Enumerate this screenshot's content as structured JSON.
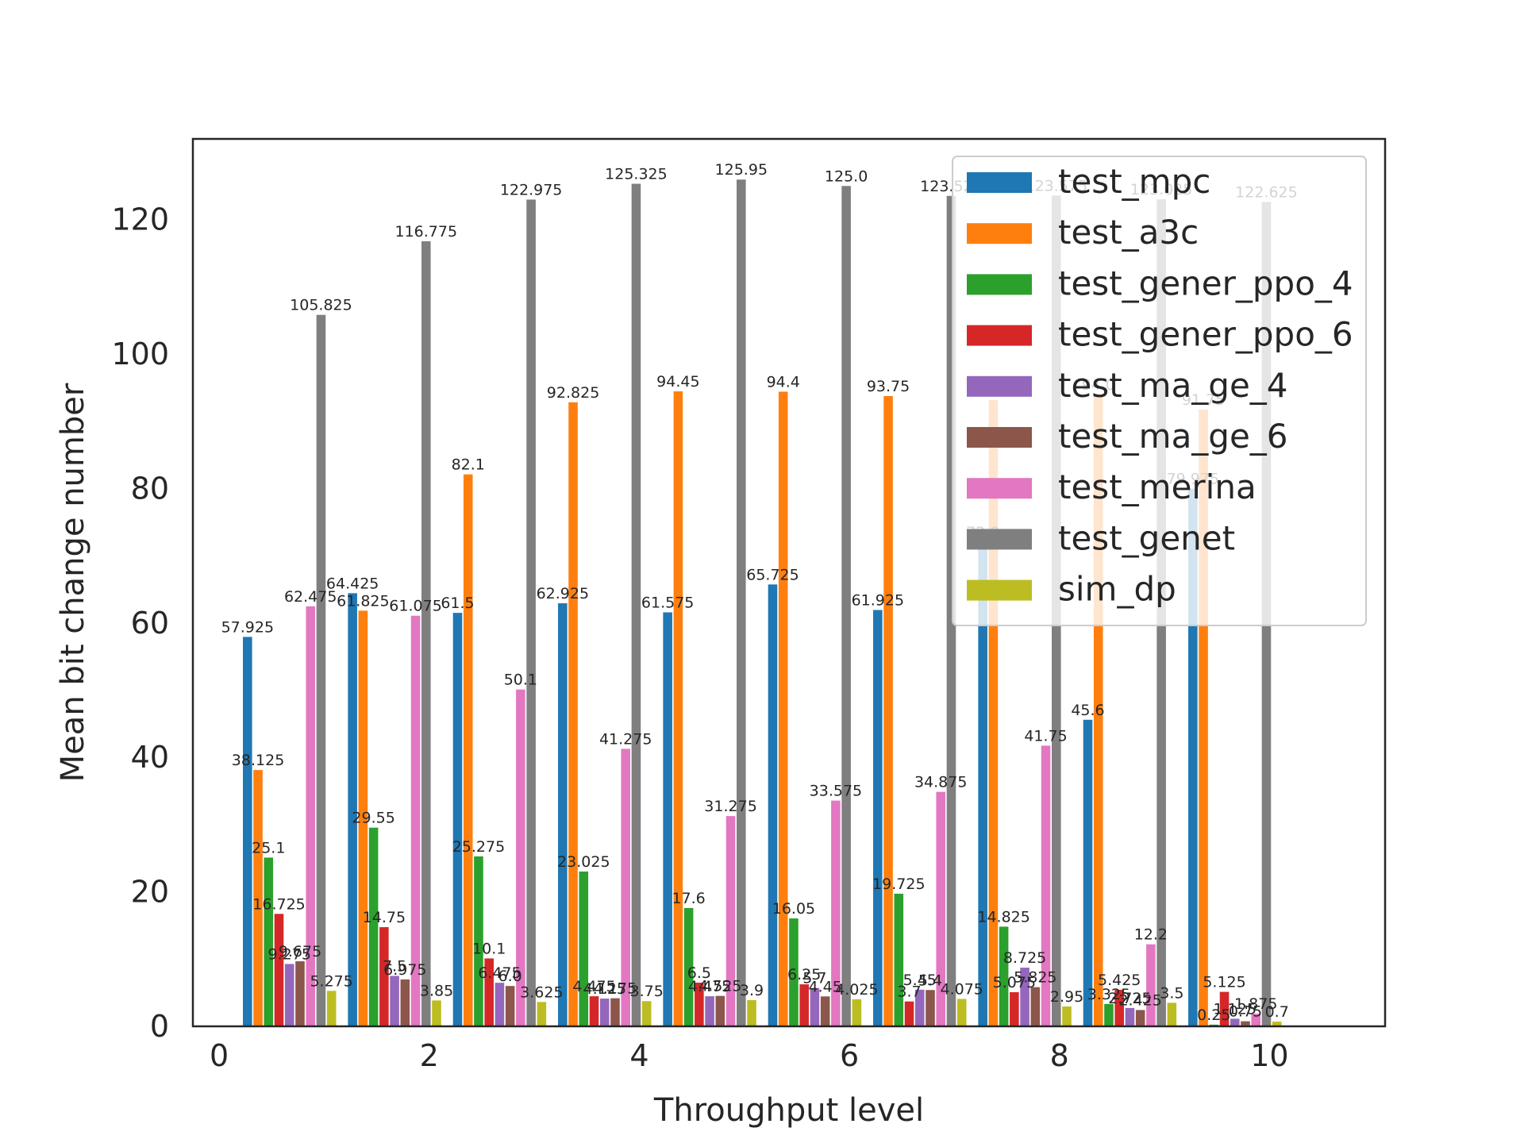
{
  "chart_data": {
    "type": "bar",
    "title": "",
    "xlabel": "Throughput level",
    "ylabel": "Mean bit change number",
    "xlim": [
      -0.25,
      11.1
    ],
    "ylim": [
      0,
      132
    ],
    "xticks": [
      0,
      2,
      4,
      6,
      8,
      10
    ],
    "yticks": [
      0,
      20,
      40,
      60,
      80,
      100,
      120
    ],
    "grid": false,
    "legend_placement": "upper right",
    "group_positions": [
      0,
      1,
      2,
      3,
      4,
      5,
      6,
      7,
      8,
      9
    ],
    "group_label_offset": 0.27,
    "series_spacing": 0.1,
    "bar_width": 0.0875,
    "series": [
      {
        "name": "test_mpc",
        "color": "#1f77b4",
        "values": [
          57.925,
          64.425,
          61.5,
          62.925,
          61.575,
          65.725,
          61.925,
          72.0,
          45.6,
          79.975
        ]
      },
      {
        "name": "test_a3c",
        "color": "#ff7f0e",
        "values": [
          38.125,
          61.825,
          82.1,
          92.825,
          94.45,
          94.4,
          93.75,
          93.15,
          94.0,
          91.75
        ]
      },
      {
        "name": "test_gener_ppo_4",
        "color": "#2ca02c",
        "values": [
          25.1,
          29.55,
          25.275,
          23.025,
          17.6,
          16.05,
          19.725,
          14.825,
          3.325,
          0.25
        ]
      },
      {
        "name": "test_gener_ppo_6",
        "color": "#d62728",
        "values": [
          16.725,
          14.75,
          10.1,
          4.475,
          6.5,
          6.25,
          3.7,
          5.075,
          5.425,
          5.125
        ]
      },
      {
        "name": "test_ma_ge_4",
        "color": "#9467bd",
        "values": [
          9.275,
          7.5,
          6.475,
          4.125,
          4.475,
          5.7,
          5.45,
          8.725,
          2.725,
          1.125
        ]
      },
      {
        "name": "test_ma_ge_6",
        "color": "#8c564b",
        "values": [
          9.675,
          6.975,
          6.0,
          4.175,
          4.525,
          4.45,
          5.4,
          5.825,
          2.425,
          0.75
        ]
      },
      {
        "name": "test_merina",
        "color": "#e377c2",
        "values": [
          62.475,
          61.075,
          50.1,
          41.275,
          31.275,
          33.575,
          34.875,
          41.75,
          12.2,
          1.875
        ]
      },
      {
        "name": "test_genet",
        "color": "#7f7f7f",
        "values": [
          105.825,
          116.775,
          122.975,
          125.325,
          125.95,
          125.0,
          123.525,
          123.575,
          123.025,
          122.625
        ]
      },
      {
        "name": "sim_dp",
        "color": "#bcbd22",
        "values": [
          5.275,
          3.85,
          3.625,
          3.75,
          3.9,
          4.025,
          4.075,
          2.95,
          3.5,
          0.7
        ]
      }
    ],
    "bar_labels": [
      [
        "57.925",
        "64.425",
        "61.5",
        "62.925",
        "61.575",
        "65.725",
        "61.925",
        "72.0",
        "45.6",
        "79.975"
      ],
      [
        "38.125",
        "61.825",
        "82.1",
        "92.825",
        "94.45",
        "94.4",
        "93.75",
        "93.15",
        "94.0",
        "91.75"
      ],
      [
        "25.1",
        "29.55",
        "25.275",
        "23.025",
        "17.6",
        "16.05",
        "19.725",
        "14.825",
        "3.325",
        "0.25"
      ],
      [
        "16.725",
        "14.75",
        "10.1",
        "4.475",
        "6.5",
        "6.25",
        "3.7",
        "5.075",
        "5.425",
        "5.125"
      ],
      [
        "9.275",
        "7.5",
        "6.475",
        "4.125",
        "4.475",
        "5.7",
        "5.45",
        "8.725",
        "2.725",
        "1.125"
      ],
      [
        "9.675",
        "6.975",
        "6.0",
        "4.175",
        "4.525",
        "4.45",
        "5.4",
        "5.825",
        "2.425",
        "0.75"
      ],
      [
        "62.475",
        "61.075",
        "50.1",
        "41.275",
        "31.275",
        "33.575",
        "34.875",
        "41.75",
        "12.2",
        "1.875"
      ],
      [
        "105.825",
        "116.775",
        "122.975",
        "125.325",
        "125.95",
        "125.0",
        "123.525",
        "123.575",
        "123.025",
        "122.625"
      ],
      [
        "5.275",
        "3.85",
        "3.625",
        "3.75",
        "3.9",
        "4.025",
        "4.075",
        "2.95",
        "3.5",
        "0.7"
      ]
    ]
  }
}
